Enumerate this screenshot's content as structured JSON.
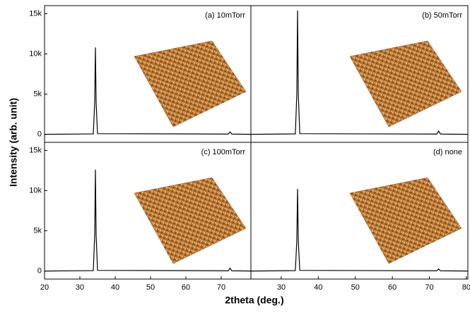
{
  "ylabel": "Intensity (arb. unit)",
  "xlabel": "2theta (deg.)",
  "chart_data": [
    {
      "type": "line",
      "annotation": "(a) 10mTorr",
      "xlim": [
        20,
        78.4
      ],
      "ylim": [
        -1000,
        16000
      ],
      "yticks": [
        0,
        {
          "value": 5000,
          "label": "5k"
        },
        {
          "value": 10000,
          "label": "10k"
        },
        {
          "value": 15000,
          "label": "15k"
        }
      ],
      "x": [
        20,
        33.8,
        34.2,
        34.4,
        34.6,
        35.0,
        72.0,
        72.5,
        73.0,
        78.4
      ],
      "series": [
        {
          "color": "#000000",
          "values": [
            0,
            50,
            4000,
            10800,
            4000,
            80,
            30,
            300,
            30,
            0
          ]
        }
      ]
    },
    {
      "type": "line",
      "annotation": "(b) 50mTorr",
      "xlim": [
        21.8,
        80.4
      ],
      "ylim": [
        -1000,
        16000
      ],
      "x": [
        21.8,
        33.8,
        34.2,
        34.4,
        34.6,
        35.0,
        72.0,
        72.5,
        73.0,
        80.4
      ],
      "series": [
        {
          "color": "#000000",
          "values": [
            0,
            50,
            5000,
            15400,
            5000,
            80,
            30,
            400,
            30,
            0
          ]
        }
      ]
    },
    {
      "type": "line",
      "annotation": "(c) 100mTorr",
      "xlim": [
        20,
        78.4
      ],
      "ylim": [
        -1000,
        16000
      ],
      "yticks": [
        0,
        {
          "value": 5000,
          "label": "5k"
        },
        {
          "value": 10000,
          "label": "10k"
        },
        {
          "value": 15000,
          "label": "15k"
        }
      ],
      "xticks": [
        20,
        30,
        40,
        50,
        60,
        70
      ],
      "x": [
        20,
        33.8,
        34.2,
        34.4,
        34.6,
        35.0,
        72.0,
        72.5,
        73.0,
        78.4
      ],
      "series": [
        {
          "color": "#000000",
          "values": [
            0,
            50,
            4500,
            12600,
            4500,
            80,
            30,
            350,
            30,
            0
          ]
        }
      ]
    },
    {
      "type": "line",
      "annotation": "(d) none",
      "xlim": [
        21.8,
        80.4
      ],
      "ylim": [
        -1000,
        16000
      ],
      "xticks": [
        30,
        40,
        50,
        60,
        70,
        80
      ],
      "x": [
        21.8,
        33.8,
        34.2,
        34.4,
        34.6,
        35.0,
        72.0,
        72.5,
        73.0,
        80.4
      ],
      "series": [
        {
          "color": "#000000",
          "values": [
            0,
            50,
            3800,
            10200,
            3800,
            80,
            30,
            250,
            30,
            0
          ]
        }
      ]
    }
  ]
}
